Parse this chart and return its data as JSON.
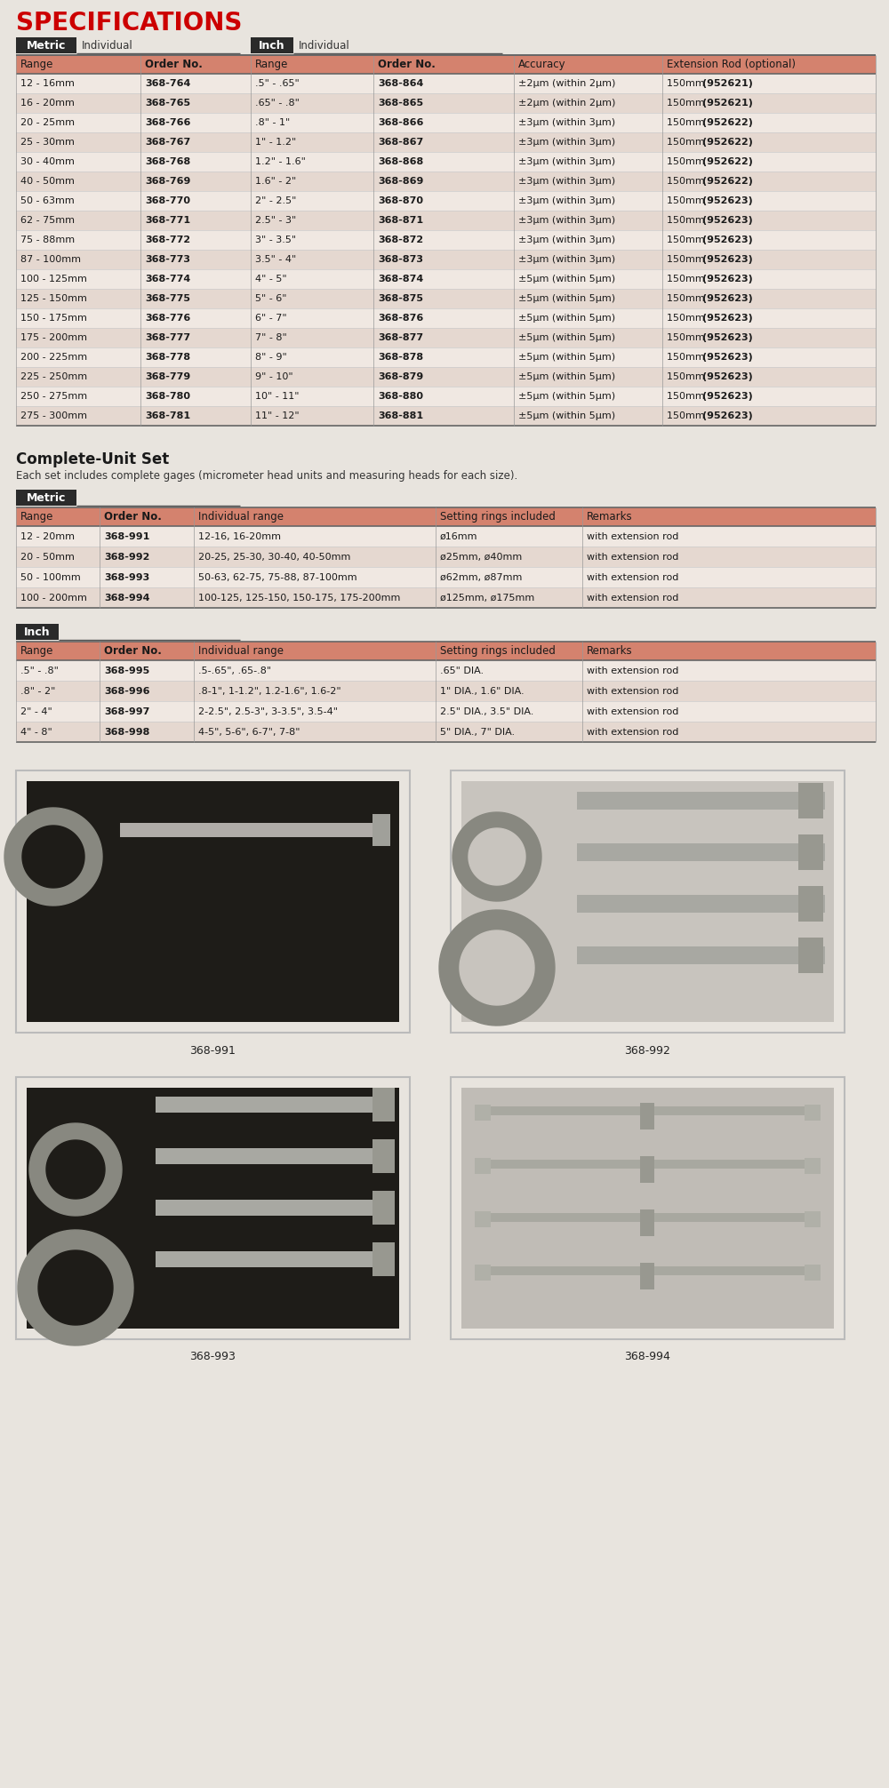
{
  "title": "SPECIFICATIONS",
  "bg_color": "#e8e4de",
  "title_color": "#cc0000",
  "header_bg": "#2a2a2a",
  "col_header_bg": "#d4826e",
  "row_bg_light": "#f0e8e2",
  "row_bg_dark": "#e5d8d0",
  "metric_rows": [
    [
      "12 - 16mm",
      "368-764"
    ],
    [
      "16 - 20mm",
      "368-765"
    ],
    [
      "20 - 25mm",
      "368-766"
    ],
    [
      "25 - 30mm",
      "368-767"
    ],
    [
      "30 - 40mm",
      "368-768"
    ],
    [
      "40 - 50mm",
      "368-769"
    ],
    [
      "50 - 63mm",
      "368-770"
    ],
    [
      "62 - 75mm",
      "368-771"
    ],
    [
      "75 - 88mm",
      "368-772"
    ],
    [
      "87 - 100mm",
      "368-773"
    ],
    [
      "100 - 125mm",
      "368-774"
    ],
    [
      "125 - 150mm",
      "368-775"
    ],
    [
      "150 - 175mm",
      "368-776"
    ],
    [
      "175 - 200mm",
      "368-777"
    ],
    [
      "200 - 225mm",
      "368-778"
    ],
    [
      "225 - 250mm",
      "368-779"
    ],
    [
      "250 - 275mm",
      "368-780"
    ],
    [
      "275 - 300mm",
      "368-781"
    ]
  ],
  "inch_rows": [
    [
      ".5\" - .65\"",
      "368-864"
    ],
    [
      ".65\" - .8\"",
      "368-865"
    ],
    [
      ".8\" - 1\"",
      "368-866"
    ],
    [
      "1\" - 1.2\"",
      "368-867"
    ],
    [
      "1.2\" - 1.6\"",
      "368-868"
    ],
    [
      "1.6\" - 2\"",
      "368-869"
    ],
    [
      "2\" - 2.5\"",
      "368-870"
    ],
    [
      "2.5\" - 3\"",
      "368-871"
    ],
    [
      "3\" - 3.5\"",
      "368-872"
    ],
    [
      "3.5\" - 4\"",
      "368-873"
    ],
    [
      "4\" - 5\"",
      "368-874"
    ],
    [
      "5\" - 6\"",
      "368-875"
    ],
    [
      "6\" - 7\"",
      "368-876"
    ],
    [
      "7\" - 8\"",
      "368-877"
    ],
    [
      "8\" - 9\"",
      "368-878"
    ],
    [
      "9\" - 10\"",
      "368-879"
    ],
    [
      "10\" - 11\"",
      "368-880"
    ],
    [
      "11\" - 12\"",
      "368-881"
    ]
  ],
  "accuracy_rows": [
    "±2μm (within 2μm)",
    "±2μm (within 2μm)",
    "±3μm (within 3μm)",
    "±3μm (within 3μm)",
    "±3μm (within 3μm)",
    "±3μm (within 3μm)",
    "±3μm (within 3μm)",
    "±3μm (within 3μm)",
    "±3μm (within 3μm)",
    "±3μm (within 3μm)",
    "±5μm (within 5μm)",
    "±5μm (within 5μm)",
    "±5μm (within 5μm)",
    "±5μm (within 5μm)",
    "±5μm (within 5μm)",
    "±5μm (within 5μm)",
    "±5μm (within 5μm)",
    "±5μm (within 5μm)"
  ],
  "extension_rows": [
    [
      "150mm ",
      "(952621)"
    ],
    [
      "150mm ",
      "(952621)"
    ],
    [
      "150mm ",
      "(952622)"
    ],
    [
      "150mm ",
      "(952622)"
    ],
    [
      "150mm ",
      "(952622)"
    ],
    [
      "150mm ",
      "(952622)"
    ],
    [
      "150mm ",
      "(952623)"
    ],
    [
      "150mm ",
      "(952623)"
    ],
    [
      "150mm ",
      "(952623)"
    ],
    [
      "150mm ",
      "(952623)"
    ],
    [
      "150mm ",
      "(952623)"
    ],
    [
      "150mm ",
      "(952623)"
    ],
    [
      "150mm ",
      "(952623)"
    ],
    [
      "150mm ",
      "(952623)"
    ],
    [
      "150mm ",
      "(952623)"
    ],
    [
      "150mm ",
      "(952623)"
    ],
    [
      "150mm ",
      "(952623)"
    ],
    [
      "150mm ",
      "(952623)"
    ]
  ],
  "complete_unit_title": "Complete-Unit Set",
  "complete_unit_desc": "Each set includes complete gages (micrometer head units and measuring heads for each size).",
  "metric_set_rows": [
    [
      "12 - 20mm",
      "368-991",
      "12-16, 16-20mm",
      "ø16mm",
      "with extension rod"
    ],
    [
      "20 - 50mm",
      "368-992",
      "20-25, 25-30, 30-40, 40-50mm",
      "ø25mm, ø40mm",
      "with extension rod"
    ],
    [
      "50 - 100mm",
      "368-993",
      "50-63, 62-75, 75-88, 87-100mm",
      "ø62mm, ø87mm",
      "with extension rod"
    ],
    [
      "100 - 200mm",
      "368-994",
      "100-125, 125-150, 150-175, 175-200mm",
      "ø125mm, ø175mm",
      "with extension rod"
    ]
  ],
  "inch_set_rows": [
    [
      ".5\" - .8\"",
      "368-995",
      ".5-.65\", .65-.8\"",
      ".65\" DIA.",
      "with extension rod"
    ],
    [
      ".8\" - 2\"",
      "368-996",
      ".8-1\", 1-1.2\", 1.2-1.6\", 1.6-2\"",
      "1\" DIA., 1.6\" DIA.",
      "with extension rod"
    ],
    [
      "2\" - 4\"",
      "368-997",
      "2-2.5\", 2.5-3\", 3-3.5\", 3.5-4\"",
      "2.5\" DIA., 3.5\" DIA.",
      "with extension rod"
    ],
    [
      "4\" - 8\"",
      "368-998",
      "4-5\", 5-6\", 6-7\", 7-8\"",
      "5\" DIA., 7\" DIA.",
      "with extension rod"
    ]
  ],
  "image_labels": [
    "368-991",
    "368-992",
    "368-993",
    "368-994"
  ],
  "img_border_color": "#aaaaaa",
  "img_bg_colors": [
    "#2a2620",
    "#d0ccc8",
    "#2a2620",
    "#c8c4be"
  ]
}
